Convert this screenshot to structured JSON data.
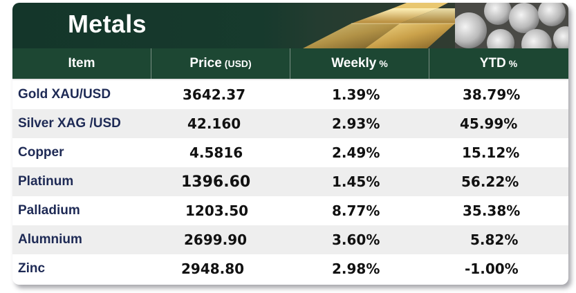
{
  "banner": {
    "title": "Metals"
  },
  "table": {
    "headers": {
      "item": "Item",
      "price": "Price",
      "price_unit": "(USD)",
      "weekly": "Weekly",
      "weekly_unit": "%",
      "ytd": "YTD",
      "ytd_unit": "%"
    },
    "rows": [
      {
        "item": "Gold XAU/USD",
        "price": "3642.37",
        "weekly": "1.39%",
        "ytd": "38.79%"
      },
      {
        "item": "Silver XAG /USD",
        "price": "42.160",
        "weekly": "2.93%",
        "ytd": "45.99%"
      },
      {
        "item": "Copper",
        "price": "4.5816",
        "weekly": "2.49%",
        "ytd": "15.12%"
      },
      {
        "item": "Platinum",
        "price": "1396.60",
        "weekly": "1.45%",
        "ytd": "56.22%"
      },
      {
        "item": "Palladium",
        "price": "1203.50",
        "weekly": "8.77%",
        "ytd": "35.38%"
      },
      {
        "item": "Alumnium",
        "price": "2699.90",
        "weekly": "3.60%",
        "ytd": "5.82%"
      },
      {
        "item": "Zinc",
        "price": "2948.80",
        "weekly": "2.98%",
        "ytd": "-1.00%"
      }
    ]
  },
  "colors": {
    "banner_bg": "#173a2d",
    "header_bg": "#1d4733",
    "item_text": "#1e2a55",
    "alt_row": "#eeeeee"
  },
  "icons": [
    "gold-bars-image",
    "silver-coins-image"
  ]
}
